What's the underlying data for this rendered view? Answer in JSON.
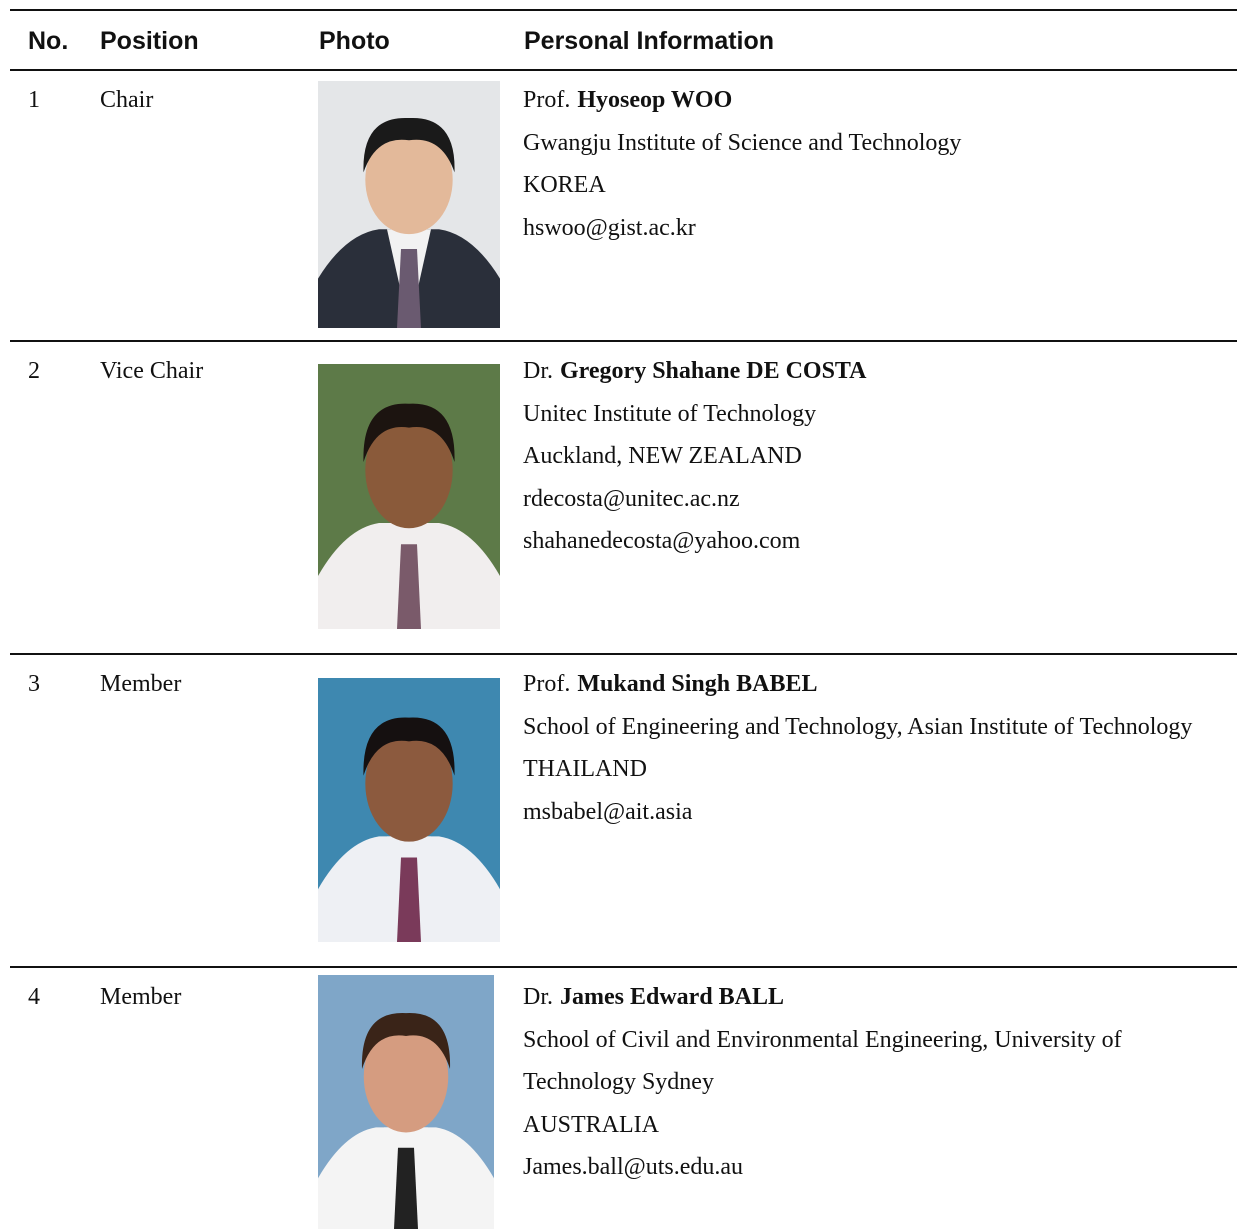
{
  "table": {
    "columns": [
      "No.",
      "Position",
      "Photo",
      "Personal Information"
    ],
    "rows": [
      {
        "no": "1",
        "position": "Chair",
        "title": "Prof.",
        "name": "Hyoseop WOO",
        "details": [
          "Gwangju Institute of Science and Technology",
          "KOREA",
          "hswoo@gist.ac.kr"
        ]
      },
      {
        "no": "2",
        "position": "Vice Chair",
        "title": "Dr.",
        "name": "Gregory Shahane DE COSTA",
        "details": [
          "Unitec Institute of Technology",
          "Auckland, NEW ZEALAND",
          "rdecosta@unitec.ac.nz",
          "shahanedecosta@yahoo.com"
        ]
      },
      {
        "no": "3",
        "position": "Member",
        "title": "Prof.",
        "name": "Mukand Singh BABEL",
        "details": [
          "School of Engineering and Technology, Asian Institute of Technology",
          "THAILAND",
          "msbabel@ait.asia"
        ]
      },
      {
        "no": "4",
        "position": "Member",
        "title": "Dr.",
        "name": "James Edward BALL",
        "details": [
          "School of Civil and Environmental Engineering, University of Technology Sydney",
          "AUSTRALIA",
          "James.ball@uts.edu.au"
        ]
      }
    ]
  }
}
